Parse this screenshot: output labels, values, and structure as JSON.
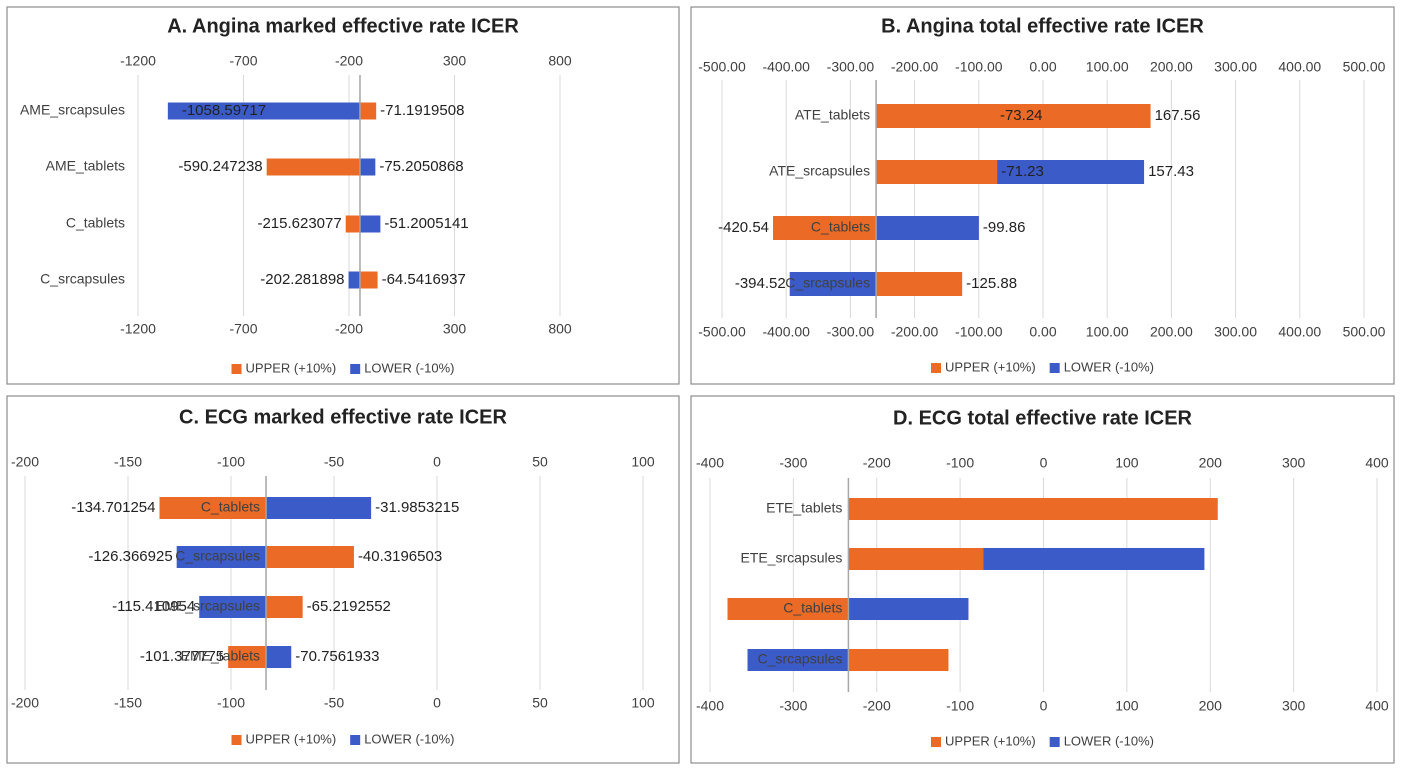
{
  "chart_data": [
    {
      "type": "tornado",
      "title": "A.  Angina marked effective rate ICER",
      "categories": [
        "AME_srcapsules",
        "AME_tablets",
        "C_tablets",
        "C_srcapsules"
      ],
      "series": [
        {
          "name": "UPPER (+10%)",
          "color": "#eb6a25",
          "values": [
            -71.1919508,
            -590.247238,
            -215.623077,
            -64.5416937
          ]
        },
        {
          "name": "LOWER (-10%)",
          "color": "#3b5bc8",
          "values": [
            -1058.59717,
            -75.2050868,
            -51.2005141,
            -202.281898
          ]
        }
      ],
      "base": -148,
      "xlim": [
        -1200,
        800
      ],
      "xticks": [
        -1200,
        -700,
        -200,
        300,
        800
      ],
      "grid": true,
      "data_labels": true,
      "legend": "bottom"
    },
    {
      "type": "tornado",
      "title": "B.  Angina total effective rate ICER",
      "categories": [
        "ATE_tablets",
        "ATE_srcapsules",
        "C_tablets",
        "C_srcapsules"
      ],
      "series": [
        {
          "name": "UPPER (+10%)",
          "color": "#eb6a25",
          "values": [
            167.56,
            -71.23,
            -420.54,
            -125.88
          ]
        },
        {
          "name": "LOWER (-10%)",
          "color": "#3b5bc8",
          "values": [
            -73.24,
            157.43,
            -99.86,
            -394.52
          ]
        }
      ],
      "base": -260,
      "xlim": [
        -500,
        500
      ],
      "xticks": [
        {
          "value": -500,
          "label": "-500.00"
        },
        {
          "value": -400,
          "label": "-400.00"
        },
        {
          "value": -300,
          "label": "-300.00"
        },
        {
          "value": -200,
          "label": "-200.00"
        },
        {
          "value": -100,
          "label": "-100.00"
        },
        {
          "value": 0,
          "label": "0.00"
        },
        {
          "value": 100,
          "label": "100.00"
        },
        {
          "value": 200,
          "label": "200.00"
        },
        {
          "value": 300,
          "label": "300.00"
        },
        {
          "value": 400,
          "label": "400.00"
        },
        {
          "value": 500,
          "label": "500.00"
        }
      ],
      "grid": true,
      "data_labels": true,
      "legend": "bottom"
    },
    {
      "type": "tornado",
      "title": "C. ECG marked effective rate ICER",
      "categories": [
        "C_tablets",
        "C_srcapsules",
        "EME_srcapsules",
        "EME_tablets"
      ],
      "series": [
        {
          "name": "UPPER (+10%)",
          "color": "#eb6a25",
          "values": [
            -134.701254,
            -40.3196503,
            -65.2192552,
            -101.377775
          ]
        },
        {
          "name": "LOWER (-10%)",
          "color": "#3b5bc8",
          "values": [
            -31.9853215,
            -126.366925,
            -115.410954,
            -70.7561933
          ]
        }
      ],
      "base": -83,
      "xlim": [
        -200,
        100
      ],
      "xticks": [
        -200,
        -150,
        -100,
        -50,
        0,
        50,
        100
      ],
      "grid": true,
      "data_labels": true,
      "legend": "bottom"
    },
    {
      "type": "tornado",
      "title": "D. ECG total effective rate ICER",
      "categories": [
        "ETE_tablets",
        "ETE_srcapsules",
        "C_tablets",
        "C_srcapsules"
      ],
      "series": [
        {
          "name": "UPPER (+10%)",
          "color": "#eb6a25",
          "values": [
            209,
            -72,
            -379,
            -114
          ]
        },
        {
          "name": "LOWER (-10%)",
          "color": "#3b5bc8",
          "values": [
            -74,
            193,
            -90,
            -355
          ]
        }
      ],
      "base": -234,
      "xlim": [
        -400,
        400
      ],
      "xticks": [
        -400,
        -300,
        -200,
        -100,
        0,
        100,
        200,
        300,
        400
      ],
      "grid": true,
      "data_labels": false,
      "legend": "bottom"
    }
  ]
}
